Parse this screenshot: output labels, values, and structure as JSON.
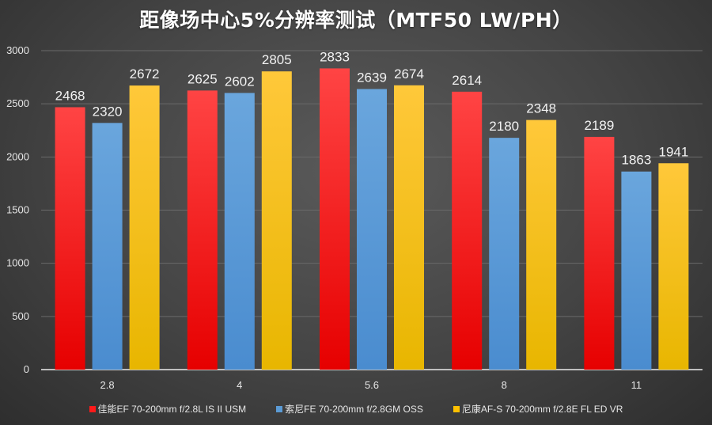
{
  "chart_data": {
    "type": "bar",
    "title": "距像场中心5%分辨率测试（MTF50 LW/PH）",
    "xlabel": "",
    "ylabel": "",
    "categories": [
      "2.8",
      "4",
      "5.6",
      "8",
      "11"
    ],
    "ylim": [
      0,
      3000
    ],
    "yticks": [
      0,
      500,
      1000,
      1500,
      2000,
      2500,
      3000
    ],
    "grid": true,
    "legend_position": "bottom",
    "series": [
      {
        "name": "佳能EF 70-200mm f/2.8L IS II USM",
        "color": "#ff1a1a",
        "values": [
          2468,
          2625,
          2833,
          2614,
          2189
        ]
      },
      {
        "name": "索尼FE 70-200mm f/2.8GM OSS",
        "color": "#5b9bd5",
        "values": [
          2320,
          2602,
          2639,
          2180,
          1863
        ]
      },
      {
        "name": "尼康AF-S 70-200mm f/2.8E FL ED VR",
        "color": "#ffc000",
        "values": [
          2672,
          2805,
          2674,
          2348,
          1941
        ]
      }
    ]
  }
}
